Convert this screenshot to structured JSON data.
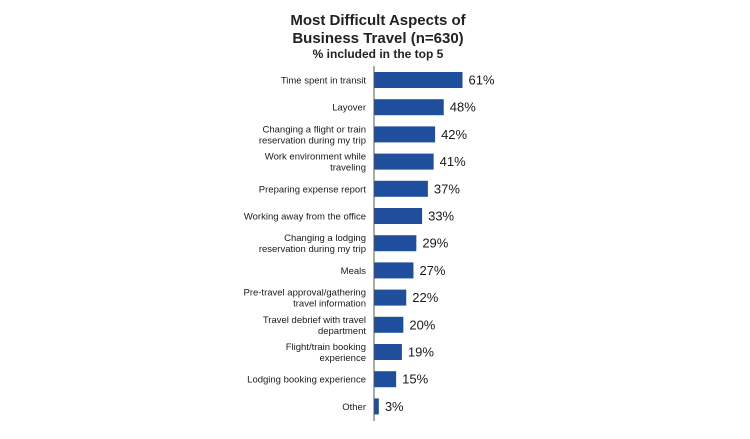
{
  "chart_data": {
    "type": "bar",
    "orientation": "horizontal",
    "title_lines": [
      "Most Difficult Aspects of",
      "Business Travel (n=630)"
    ],
    "subtitle": "% included in the top 5",
    "categories": [
      [
        "Time spent in transit"
      ],
      [
        "Layover"
      ],
      [
        "Changing a flight or train",
        "reservation during my trip"
      ],
      [
        "Work environment while",
        "traveling"
      ],
      [
        "Preparing expense report"
      ],
      [
        "Working away from the office"
      ],
      [
        "Changing a lodging",
        "reservation during my trip"
      ],
      [
        "Meals"
      ],
      [
        "Pre-travel approval/gathering",
        "travel information"
      ],
      [
        "Travel debrief with travel",
        "department"
      ],
      [
        "Flight/train booking",
        "experience"
      ],
      [
        "Lodging booking experience"
      ],
      [
        "Other"
      ]
    ],
    "values": [
      61,
      48,
      42,
      41,
      37,
      33,
      29,
      27,
      22,
      20,
      19,
      15,
      3
    ],
    "value_labels": [
      "61%",
      "48%",
      "42%",
      "41%",
      "37%",
      "33%",
      "29%",
      "27%",
      "22%",
      "20%",
      "19%",
      "15%",
      "3%"
    ],
    "xlim": [
      0,
      100
    ],
    "bar_color": "#1f4e9c",
    "axis_color": "#555555",
    "grid": false,
    "legend": "none"
  }
}
